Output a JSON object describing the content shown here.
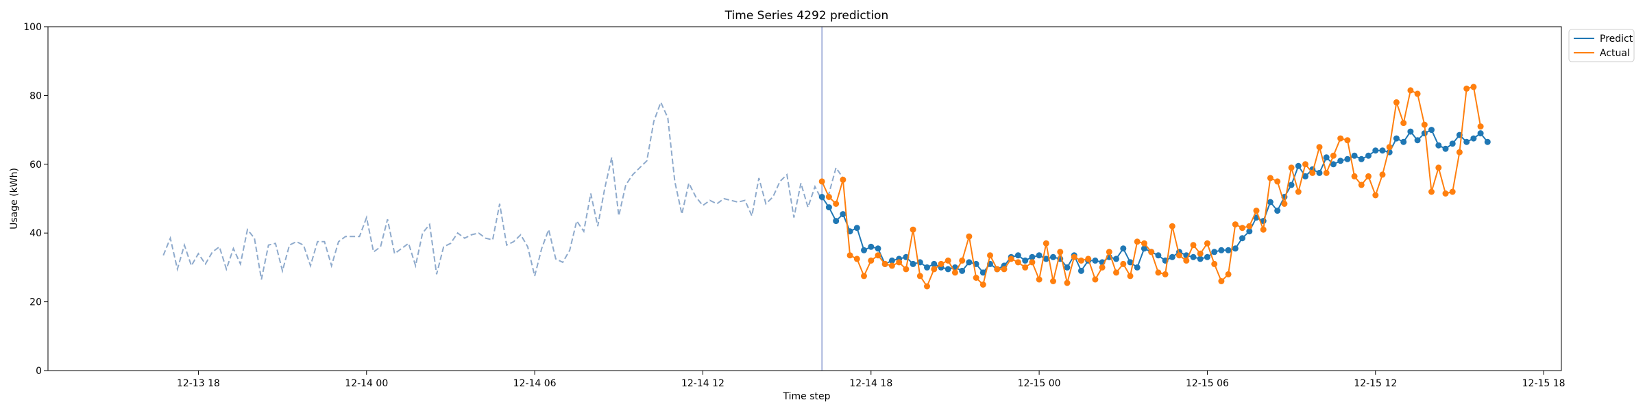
{
  "chart_data": {
    "type": "line",
    "title": "Time Series 4292 prediction",
    "xlabel": "Time step",
    "ylabel": "Usage (kWh)",
    "ylim": [
      0,
      100
    ],
    "xlim": [
      "2024-12-13 12:38",
      "2024-12-15 18:38"
    ],
    "y_ticks": [
      0,
      20,
      40,
      60,
      80,
      100
    ],
    "x_ticks": [
      {
        "t": "2024-12-13 18:00",
        "label": "12-13 18"
      },
      {
        "t": "2024-12-14 00:00",
        "label": "12-14 00"
      },
      {
        "t": "2024-12-14 06:00",
        "label": "12-14 06"
      },
      {
        "t": "2024-12-14 12:00",
        "label": "12-14 12"
      },
      {
        "t": "2024-12-14 18:00",
        "label": "12-14 18"
      },
      {
        "t": "2024-12-15 00:00",
        "label": "12-15 00"
      },
      {
        "t": "2024-12-15 06:00",
        "label": "12-15 06"
      },
      {
        "t": "2024-12-15 12:00",
        "label": "12-15 12"
      },
      {
        "t": "2024-12-15 18:00",
        "label": "12-15 18"
      }
    ],
    "forecast_start": "2024-12-14 16:15",
    "legend_position": "top-right",
    "grid": false,
    "history": {
      "style": "dashed",
      "color": "#8eaacc",
      "start": "2024-12-13 16:45",
      "step_minutes": 15,
      "values": [
        33.5,
        38.5,
        29.5,
        36.5,
        30.5,
        34.0,
        31.0,
        34.5,
        36.0,
        29.5,
        35.5,
        31.0,
        41.0,
        38.5,
        26.5,
        36.5,
        37.0,
        29.0,
        36.5,
        37.5,
        36.5,
        30.5,
        37.5,
        37.5,
        30.5,
        37.5,
        39.0,
        39.0,
        39.0,
        44.5,
        34.5,
        36.0,
        44.0,
        34.0,
        35.5,
        37.0,
        30.5,
        40.0,
        42.5,
        28.0,
        36.0,
        37.0,
        40.0,
        38.5,
        39.5,
        40.0,
        38.5,
        38.0,
        48.5,
        36.5,
        37.5,
        39.5,
        36.0,
        27.5,
        35.5,
        41.0,
        32.5,
        31.5,
        35.0,
        43.5,
        40.5,
        51.5,
        42.0,
        53.0,
        62.0,
        45.0,
        54.0,
        57.0,
        59.0,
        61.0,
        72.5,
        78.0,
        73.5,
        55.0,
        45.5,
        54.5,
        50.5,
        48.0,
        49.5,
        48.5,
        50.0,
        49.5,
        49.0,
        49.5,
        45.0,
        56.0,
        48.5,
        50.5,
        55.0,
        57.0,
        44.5,
        54.5,
        47.5,
        53.5,
        49.5,
        51.5,
        59.0,
        56.0
      ]
    },
    "series": [
      {
        "name": "Predict",
        "color": "#1f77b4",
        "start": "2024-12-14 16:15",
        "step_minutes": 15,
        "values": [
          50.5,
          47.5,
          43.5,
          45.5,
          40.5,
          41.5,
          35.0,
          36.0,
          35.5,
          31.0,
          32.0,
          32.5,
          33.0,
          31.0,
          31.5,
          30.0,
          31.0,
          30.0,
          29.5,
          30.0,
          29.0,
          31.5,
          31.0,
          28.5,
          31.0,
          29.5,
          30.5,
          33.0,
          33.5,
          32.0,
          33.0,
          33.5,
          32.5,
          33.0,
          32.5,
          30.0,
          33.5,
          29.0,
          32.0,
          32.0,
          31.5,
          33.0,
          32.5,
          35.5,
          31.5,
          30.0,
          35.5,
          34.5,
          33.5,
          32.0,
          33.0,
          34.5,
          33.5,
          33.0,
          32.5,
          33.0,
          34.5,
          35.0,
          35.0,
          35.5,
          38.5,
          40.5,
          44.5,
          43.5,
          49.0,
          46.5,
          50.5,
          54.0,
          59.5,
          56.5,
          58.5,
          57.5,
          62.0,
          60.0,
          61.0,
          61.5,
          62.5,
          61.5,
          62.5,
          64.0,
          64.0,
          63.5,
          67.5,
          66.5,
          69.5,
          67.0,
          69.0,
          70.0,
          65.5,
          64.5,
          66.0,
          68.5,
          66.5,
          67.5,
          69.0,
          66.5
        ]
      },
      {
        "name": "Actual",
        "color": "#ff7f0e",
        "start": "2024-12-14 16:15",
        "step_minutes": 15,
        "values": [
          55.0,
          50.5,
          48.5,
          55.5,
          33.5,
          32.5,
          27.5,
          32.0,
          33.5,
          31.0,
          30.5,
          31.5,
          29.5,
          41.0,
          27.5,
          24.5,
          29.5,
          31.0,
          32.0,
          28.5,
          32.0,
          39.0,
          27.0,
          25.0,
          33.5,
          29.5,
          29.5,
          32.5,
          31.5,
          30.0,
          31.5,
          26.5,
          37.0,
          26.0,
          34.5,
          25.5,
          33.0,
          32.0,
          32.5,
          26.5,
          30.0,
          34.5,
          28.5,
          31.0,
          27.5,
          37.5,
          37.0,
          34.5,
          28.5,
          28.0,
          42.0,
          33.5,
          32.0,
          36.5,
          34.0,
          37.0,
          31.0,
          26.0,
          28.0,
          42.5,
          41.5,
          42.0,
          46.5,
          41.0,
          56.0,
          55.0,
          48.5,
          59.0,
          52.0,
          60.0,
          57.5,
          65.0,
          57.5,
          62.5,
          67.5,
          67.0,
          56.5,
          54.0,
          56.5,
          51.0,
          57.0,
          65.0,
          78.0,
          72.0,
          81.5,
          80.5,
          71.5,
          52.0,
          59.0,
          51.5,
          52.0,
          63.5,
          82.0,
          82.5,
          71.0
        ]
      }
    ]
  }
}
